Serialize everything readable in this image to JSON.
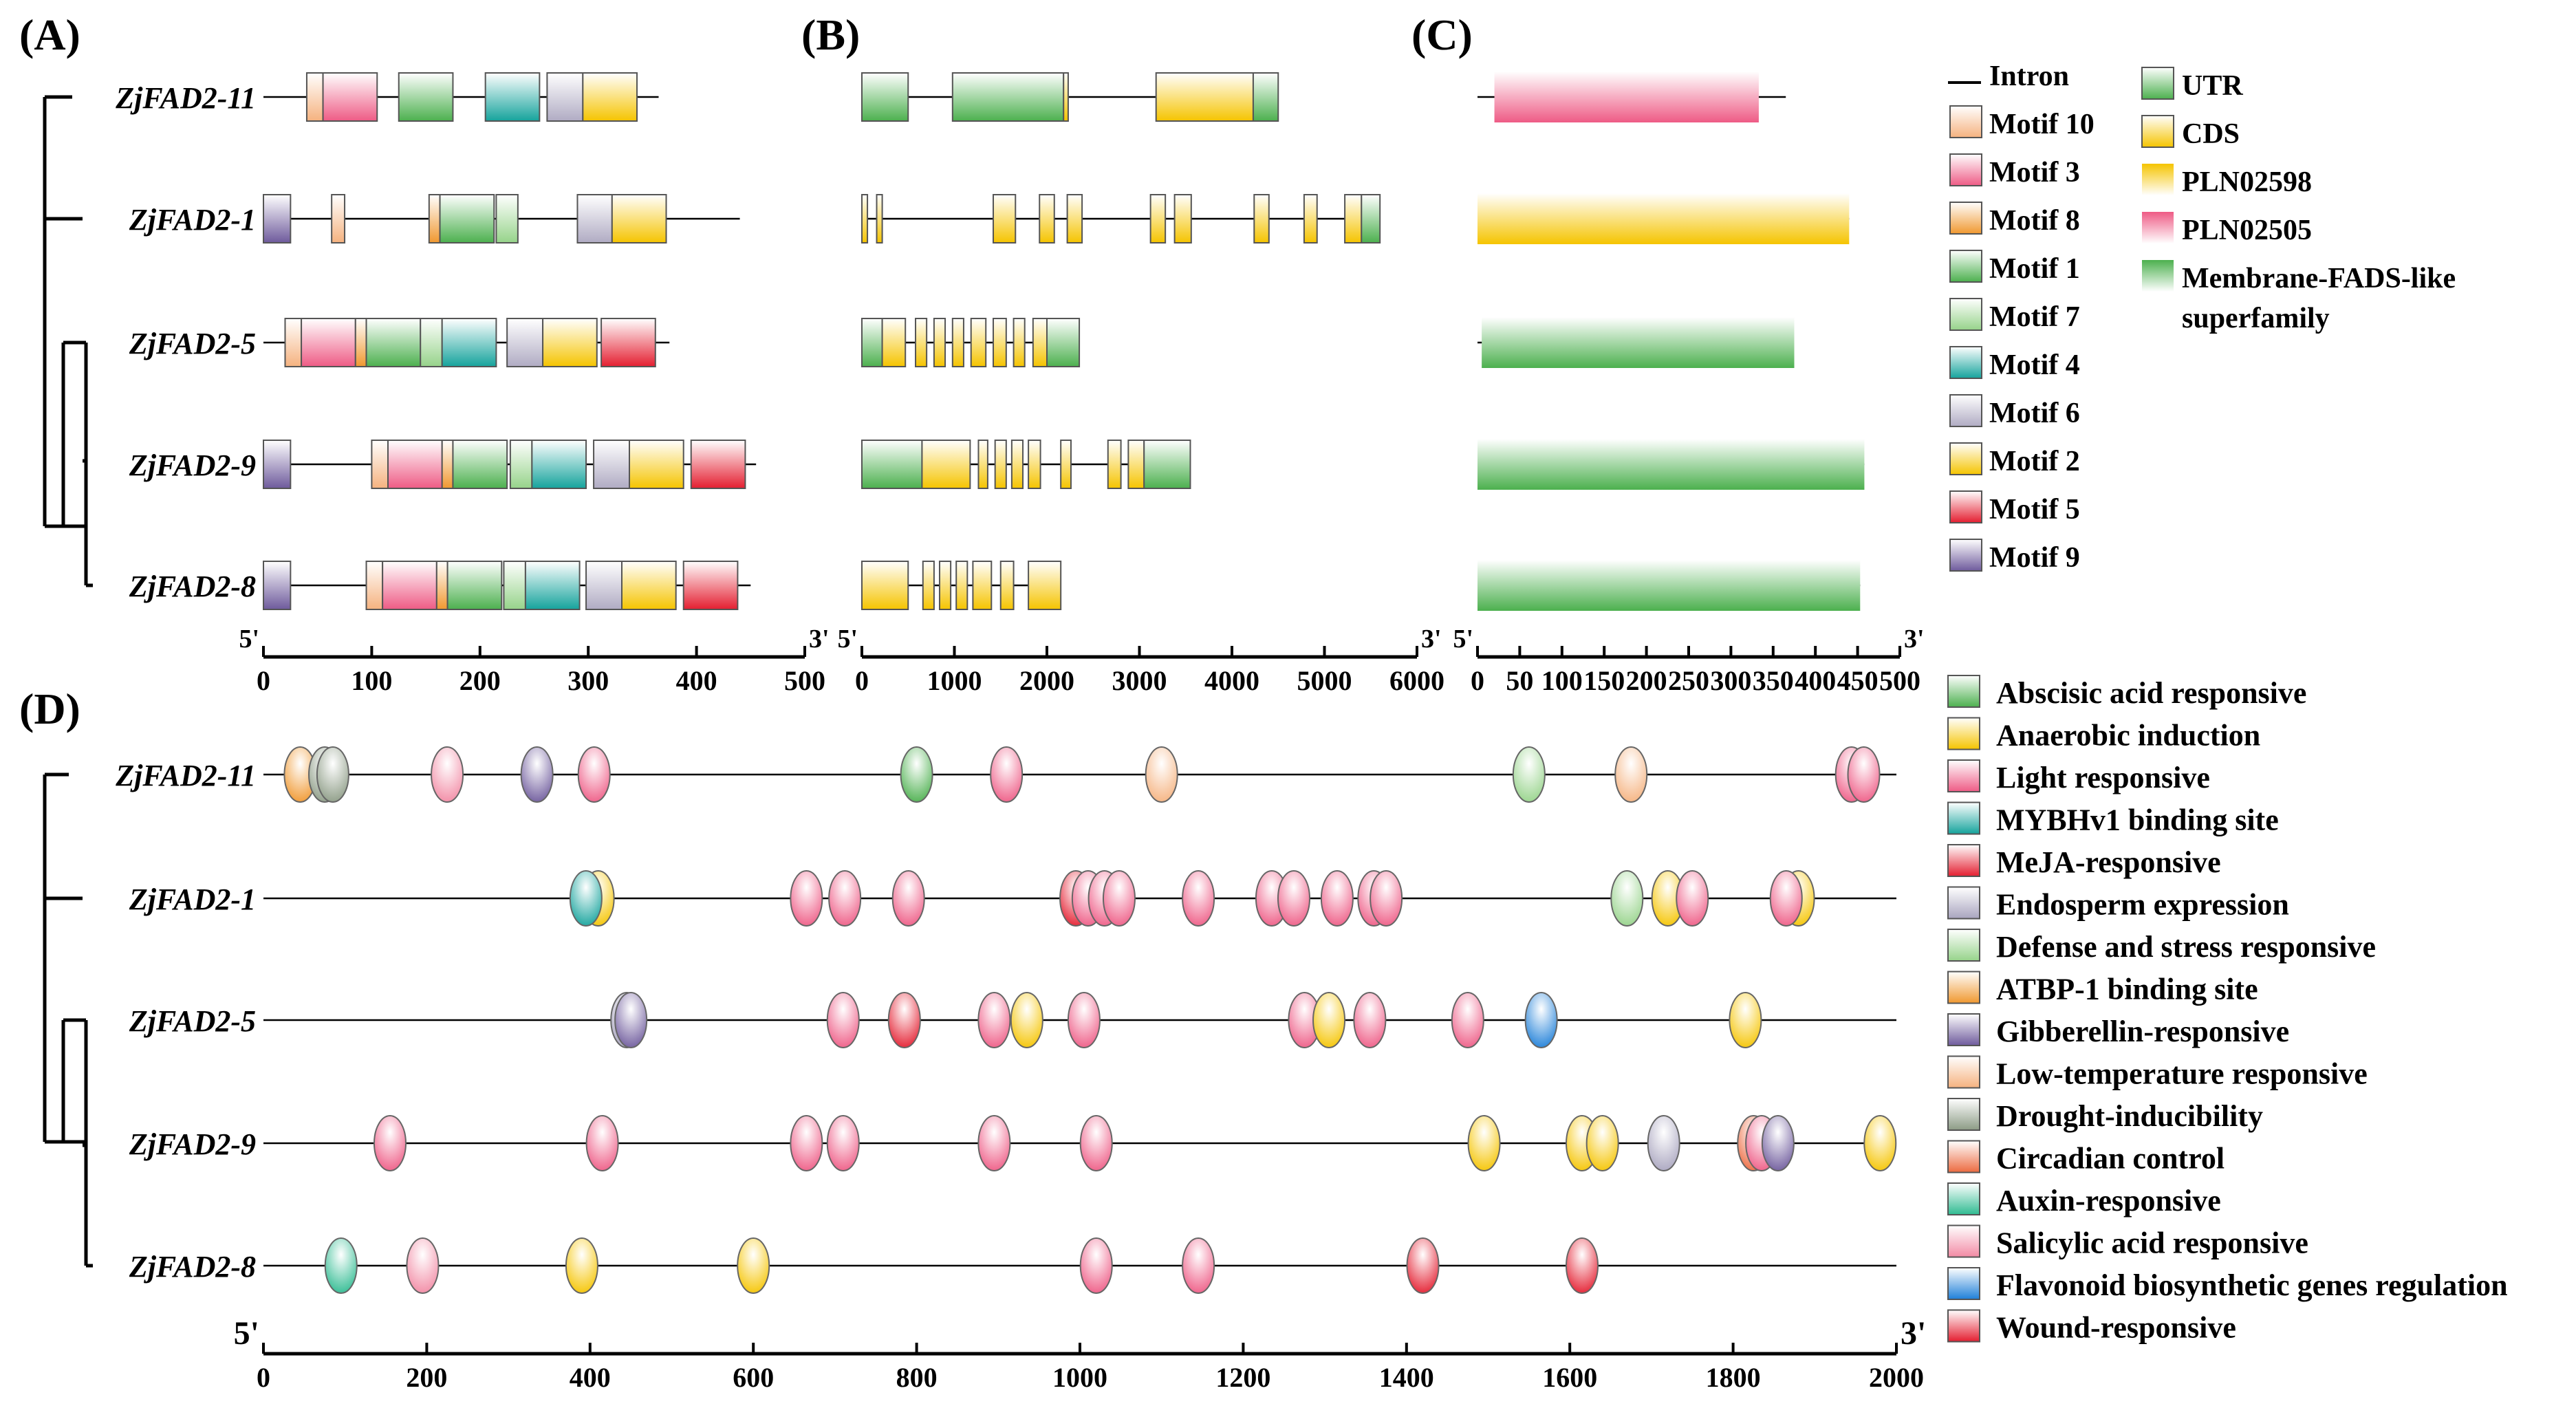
{
  "panels": {
    "a": "(A)",
    "b": "(B)",
    "c": "(C)",
    "d": "(D)"
  },
  "genes": [
    "ZjFAD2-11",
    "ZjFAD2-1",
    "ZjFAD2-5",
    "ZjFAD2-9",
    "ZjFAD2-8"
  ],
  "colors": {
    "motif10": "#f5b27f",
    "motif3": "#ee5b85",
    "motif8": "#f09830",
    "motif1": "#4cb04e",
    "motif7": "#96d38a",
    "motif4": "#15a39c",
    "motif6": "#b0abc3",
    "motif2": "#f5c400",
    "motif5": "#e41e30",
    "motif9": "#6e5a9c",
    "utr": "#4cb04e",
    "cds": "#f5c400",
    "pln02598": "#f5c400",
    "pln02505": "#ee5b85",
    "membrane": "#4cb04e",
    "abscisic": "#4cb04e",
    "anaerobic": "#f5c400",
    "light": "#ee5b85",
    "mybhv1": "#15a39c",
    "meja": "#e41e30",
    "endosperm": "#a9a5bf",
    "defense": "#96d38a",
    "atbp1": "#f09830",
    "gibberellin": "#6e5a9c",
    "lowtemp": "#f5b27f",
    "drought": "#8c9b85",
    "circadian": "#ec6a40",
    "auxin": "#2fbb91",
    "salicylic": "#f28aa4",
    "flavonoid": "#1e7fd8",
    "wound": "#e41e30"
  },
  "axes": {
    "a": {
      "start": "5'",
      "end": "3'",
      "ticks": [
        "0",
        "100",
        "200",
        "300",
        "400",
        "500"
      ],
      "range": [
        0,
        500
      ]
    },
    "b": {
      "start": "5'",
      "end": "3'",
      "ticks": [
        "0",
        "1000",
        "2000",
        "3000",
        "4000",
        "5000",
        "6000"
      ],
      "range": [
        0,
        6000
      ]
    },
    "c": {
      "start": "5'",
      "end": "3'",
      "ticks": [
        "0",
        "50",
        "100",
        "150",
        "200",
        "250",
        "300",
        "350",
        "400",
        "450",
        "500"
      ],
      "range": [
        0,
        500
      ]
    },
    "d": {
      "start": "5'",
      "end": "3'",
      "ticks": [
        "0",
        "200",
        "400",
        "600",
        "800",
        "1000",
        "1200",
        "1400",
        "1600",
        "1800",
        "2000"
      ],
      "range": [
        0,
        2000
      ]
    }
  },
  "legend_abc": {
    "col1": [
      {
        "key": "intron",
        "label": "Intron"
      },
      {
        "key": "motif10",
        "label": "Motif 10"
      },
      {
        "key": "motif3",
        "label": "Motif 3"
      },
      {
        "key": "motif8",
        "label": "Motif 8"
      },
      {
        "key": "motif1",
        "label": "Motif 1"
      },
      {
        "key": "motif7",
        "label": "Motif 7"
      },
      {
        "key": "motif4",
        "label": "Motif 4"
      },
      {
        "key": "motif6",
        "label": "Motif 6"
      },
      {
        "key": "motif2",
        "label": "Motif 2"
      },
      {
        "key": "motif5",
        "label": "Motif 5"
      },
      {
        "key": "motif9",
        "label": "Motif 9"
      }
    ],
    "col2": [
      {
        "key": "utr",
        "label": "UTR"
      },
      {
        "key": "cds",
        "label": "CDS"
      },
      {
        "key": "pln02598",
        "label": "PLN02598"
      },
      {
        "key": "pln02505",
        "label": "PLN02505"
      },
      {
        "key": "membrane",
        "label": "Membrane-FADS-like",
        "label2": "superfamily"
      }
    ]
  },
  "legend_d": [
    {
      "key": "abscisic",
      "label": "Abscisic acid responsive"
    },
    {
      "key": "anaerobic",
      "label": "Anaerobic induction"
    },
    {
      "key": "light",
      "label": "Light responsive"
    },
    {
      "key": "mybhv1",
      "label": "MYBHv1 binding site"
    },
    {
      "key": "meja",
      "label": "MeJA-responsive"
    },
    {
      "key": "endosperm",
      "label": "Endosperm expression"
    },
    {
      "key": "defense",
      "label": "Defense and stress responsive"
    },
    {
      "key": "atbp1",
      "label": "ATBP-1 binding site"
    },
    {
      "key": "gibberellin",
      "label": "Gibberellin-responsive"
    },
    {
      "key": "lowtemp",
      "label": "Low-temperature responsive"
    },
    {
      "key": "drought",
      "label": "Drought-inducibility"
    },
    {
      "key": "circadian",
      "label": "Circadian control"
    },
    {
      "key": "auxin",
      "label": "Auxin-responsive"
    },
    {
      "key": "salicylic",
      "label": "Salicylic acid responsive"
    },
    {
      "key": "flavonoid",
      "label": "Flavonoid biosynthetic genes regulation"
    },
    {
      "key": "wound",
      "label": "Wound-responsive"
    }
  ],
  "motifs": [
    {
      "gene": "ZjFAD2-11",
      "length": 365,
      "elements": [
        {
          "k": "motif10",
          "s": 40,
          "e": 55
        },
        {
          "k": "motif3",
          "s": 55,
          "e": 105
        },
        {
          "k": "motif1",
          "s": 125,
          "e": 175
        },
        {
          "k": "motif4",
          "s": 205,
          "e": 255
        },
        {
          "k": "motif6",
          "s": 262,
          "e": 295
        },
        {
          "k": "motif2",
          "s": 295,
          "e": 345
        }
      ]
    },
    {
      "gene": "ZjFAD2-1",
      "length": 440,
      "elements": [
        {
          "k": "motif9",
          "s": 0,
          "e": 25
        },
        {
          "k": "motif10",
          "s": 63,
          "e": 75
        },
        {
          "k": "motif8",
          "s": 153,
          "e": 163
        },
        {
          "k": "motif1",
          "s": 163,
          "e": 213
        },
        {
          "k": "motif7",
          "s": 215,
          "e": 235
        },
        {
          "k": "motif6",
          "s": 290,
          "e": 322
        },
        {
          "k": "motif2",
          "s": 322,
          "e": 372
        }
      ]
    },
    {
      "gene": "ZjFAD2-5",
      "length": 375,
      "elements": [
        {
          "k": "motif10",
          "s": 20,
          "e": 35
        },
        {
          "k": "motif3",
          "s": 35,
          "e": 85
        },
        {
          "k": "motif8",
          "s": 85,
          "e": 95
        },
        {
          "k": "motif1",
          "s": 95,
          "e": 145
        },
        {
          "k": "motif7",
          "s": 145,
          "e": 165
        },
        {
          "k": "motif4",
          "s": 165,
          "e": 215
        },
        {
          "k": "motif6",
          "s": 225,
          "e": 258
        },
        {
          "k": "motif2",
          "s": 258,
          "e": 308
        },
        {
          "k": "motif5",
          "s": 312,
          "e": 362
        }
      ]
    },
    {
      "gene": "ZjFAD2-9",
      "length": 455,
      "elements": [
        {
          "k": "motif9",
          "s": 0,
          "e": 25
        },
        {
          "k": "motif10",
          "s": 100,
          "e": 115
        },
        {
          "k": "motif3",
          "s": 115,
          "e": 165
        },
        {
          "k": "motif8",
          "s": 165,
          "e": 175
        },
        {
          "k": "motif1",
          "s": 175,
          "e": 225
        },
        {
          "k": "motif7",
          "s": 228,
          "e": 248
        },
        {
          "k": "motif4",
          "s": 248,
          "e": 298
        },
        {
          "k": "motif6",
          "s": 305,
          "e": 338
        },
        {
          "k": "motif2",
          "s": 338,
          "e": 388
        },
        {
          "k": "motif5",
          "s": 395,
          "e": 445
        }
      ]
    },
    {
      "gene": "ZjFAD2-8",
      "length": 450,
      "elements": [
        {
          "k": "motif9",
          "s": 0,
          "e": 25
        },
        {
          "k": "motif10",
          "s": 95,
          "e": 110
        },
        {
          "k": "motif3",
          "s": 110,
          "e": 160
        },
        {
          "k": "motif8",
          "s": 160,
          "e": 170
        },
        {
          "k": "motif1",
          "s": 170,
          "e": 220
        },
        {
          "k": "motif7",
          "s": 222,
          "e": 242
        },
        {
          "k": "motif4",
          "s": 242,
          "e": 292
        },
        {
          "k": "motif6",
          "s": 298,
          "e": 331
        },
        {
          "k": "motif2",
          "s": 331,
          "e": 381
        },
        {
          "k": "motif5",
          "s": 388,
          "e": 438
        }
      ]
    }
  ],
  "gene_structure": [
    {
      "gene": "ZjFAD2-11",
      "length": 4500,
      "elements": [
        {
          "k": "utr",
          "s": 0,
          "e": 500
        },
        {
          "k": "utr",
          "s": 980,
          "e": 2180
        },
        {
          "k": "cds",
          "s": 2180,
          "e": 2230
        },
        {
          "k": "cds",
          "s": 3180,
          "e": 4230
        },
        {
          "k": "utr",
          "s": 4230,
          "e": 4500
        }
      ]
    },
    {
      "gene": "ZjFAD2-1",
      "length": 5600,
      "elements": [
        {
          "k": "cds",
          "s": 0,
          "e": 60
        },
        {
          "k": "cds",
          "s": 160,
          "e": 220
        },
        {
          "k": "cds",
          "s": 1420,
          "e": 1660
        },
        {
          "k": "cds",
          "s": 1920,
          "e": 2080
        },
        {
          "k": "cds",
          "s": 2220,
          "e": 2380
        },
        {
          "k": "cds",
          "s": 3120,
          "e": 3280
        },
        {
          "k": "cds",
          "s": 3380,
          "e": 3560
        },
        {
          "k": "cds",
          "s": 4240,
          "e": 4400
        },
        {
          "k": "cds",
          "s": 4780,
          "e": 4920
        },
        {
          "k": "cds",
          "s": 5220,
          "e": 5400
        },
        {
          "k": "utr",
          "s": 5400,
          "e": 5600
        }
      ]
    },
    {
      "gene": "ZjFAD2-5",
      "length": 2350,
      "elements": [
        {
          "k": "utr",
          "s": 0,
          "e": 220
        },
        {
          "k": "cds",
          "s": 220,
          "e": 470
        },
        {
          "k": "cds",
          "s": 580,
          "e": 700
        },
        {
          "k": "cds",
          "s": 780,
          "e": 900
        },
        {
          "k": "cds",
          "s": 980,
          "e": 1100
        },
        {
          "k": "cds",
          "s": 1180,
          "e": 1340
        },
        {
          "k": "cds",
          "s": 1420,
          "e": 1560
        },
        {
          "k": "cds",
          "s": 1640,
          "e": 1760
        },
        {
          "k": "cds",
          "s": 1850,
          "e": 2000
        },
        {
          "k": "utr",
          "s": 2000,
          "e": 2350
        }
      ]
    },
    {
      "gene": "ZjFAD2-9",
      "length": 3550,
      "elements": [
        {
          "k": "utr",
          "s": 0,
          "e": 650
        },
        {
          "k": "cds",
          "s": 650,
          "e": 1170
        },
        {
          "k": "cds",
          "s": 1260,
          "e": 1360
        },
        {
          "k": "cds",
          "s": 1440,
          "e": 1560
        },
        {
          "k": "cds",
          "s": 1620,
          "e": 1740
        },
        {
          "k": "cds",
          "s": 1800,
          "e": 1930
        },
        {
          "k": "cds",
          "s": 2150,
          "e": 2260
        },
        {
          "k": "cds",
          "s": 2660,
          "e": 2800
        },
        {
          "k": "cds",
          "s": 2880,
          "e": 3050
        },
        {
          "k": "utr",
          "s": 3050,
          "e": 3550
        }
      ]
    },
    {
      "gene": "ZjFAD2-8",
      "length": 2150,
      "elements": [
        {
          "k": "cds",
          "s": 0,
          "e": 500
        },
        {
          "k": "cds",
          "s": 660,
          "e": 780
        },
        {
          "k": "cds",
          "s": 840,
          "e": 960
        },
        {
          "k": "cds",
          "s": 1020,
          "e": 1140
        },
        {
          "k": "cds",
          "s": 1200,
          "e": 1400
        },
        {
          "k": "cds",
          "s": 1500,
          "e": 1640
        },
        {
          "k": "cds",
          "s": 1800,
          "e": 2150
        }
      ]
    }
  ],
  "domains": [
    {
      "gene": "ZjFAD2-11",
      "length": 365,
      "domain": {
        "k": "pln02505",
        "s": 20,
        "e": 333
      }
    },
    {
      "gene": "ZjFAD2-1",
      "length": 440,
      "domain": {
        "k": "pln02598",
        "s": 0,
        "e": 440
      }
    },
    {
      "gene": "ZjFAD2-5",
      "length": 375,
      "domain": {
        "k": "membrane",
        "s": 5,
        "e": 375
      }
    },
    {
      "gene": "ZjFAD2-9",
      "length": 458,
      "domain": {
        "k": "membrane",
        "s": 0,
        "e": 458
      }
    },
    {
      "gene": "ZjFAD2-8",
      "length": 453,
      "domain": {
        "k": "membrane",
        "s": 0,
        "e": 453
      }
    }
  ],
  "cis_elements": [
    {
      "gene": "ZjFAD2-11",
      "elements": [
        [
          "atbp1",
          45
        ],
        [
          "drought",
          75
        ],
        [
          "drought",
          85
        ],
        [
          "salicylic",
          225
        ],
        [
          "gibberellin",
          335
        ],
        [
          "light",
          405
        ],
        [
          "abscisic",
          800
        ],
        [
          "light",
          910
        ],
        [
          "lowtemp",
          1100
        ],
        [
          "defense",
          1550
        ],
        [
          "lowtemp",
          1675
        ],
        [
          "light",
          1945
        ],
        [
          "light",
          1960
        ]
      ]
    },
    {
      "gene": "ZjFAD2-1",
      "elements": [
        [
          "anaerobic",
          410
        ],
        [
          "mybhv1",
          395
        ],
        [
          "light",
          665
        ],
        [
          "light",
          712
        ],
        [
          "light",
          790
        ],
        [
          "meja",
          995
        ],
        [
          "light",
          1010
        ],
        [
          "light",
          1030
        ],
        [
          "light",
          1048
        ],
        [
          "light",
          1145
        ],
        [
          "light",
          1235
        ],
        [
          "light",
          1262
        ],
        [
          "light",
          1315
        ],
        [
          "light",
          1360
        ],
        [
          "light",
          1375
        ],
        [
          "defense",
          1670
        ],
        [
          "anaerobic",
          1720
        ],
        [
          "light",
          1750
        ],
        [
          "anaerobic",
          1880
        ],
        [
          "light",
          1865
        ]
      ]
    },
    {
      "gene": "ZjFAD2-5",
      "elements": [
        [
          "endosperm",
          445
        ],
        [
          "gibberellin",
          450
        ],
        [
          "light",
          710
        ],
        [
          "meja",
          785
        ],
        [
          "light",
          895
        ],
        [
          "anaerobic",
          935
        ],
        [
          "light",
          1005
        ],
        [
          "light",
          1275
        ],
        [
          "anaerobic",
          1305
        ],
        [
          "light",
          1355
        ],
        [
          "light",
          1475
        ],
        [
          "flavonoid",
          1565
        ],
        [
          "anaerobic",
          1815
        ]
      ]
    },
    {
      "gene": "ZjFAD2-9",
      "elements": [
        [
          "light",
          155
        ],
        [
          "light",
          415
        ],
        [
          "light",
          665
        ],
        [
          "light",
          710
        ],
        [
          "light",
          895
        ],
        [
          "light",
          1020
        ],
        [
          "anaerobic",
          1495
        ],
        [
          "anaerobic",
          1615
        ],
        [
          "anaerobic",
          1640
        ],
        [
          "endosperm",
          1715
        ],
        [
          "circadian",
          1825
        ],
        [
          "light",
          1835
        ],
        [
          "gibberellin",
          1855
        ],
        [
          "anaerobic",
          1980
        ]
      ]
    },
    {
      "gene": "ZjFAD2-8",
      "elements": [
        [
          "auxin",
          95
        ],
        [
          "salicylic",
          195
        ],
        [
          "anaerobic",
          390
        ],
        [
          "anaerobic",
          600
        ],
        [
          "light",
          1020
        ],
        [
          "light",
          1145
        ],
        [
          "meja",
          1420
        ],
        [
          "meja",
          1615
        ]
      ]
    }
  ]
}
